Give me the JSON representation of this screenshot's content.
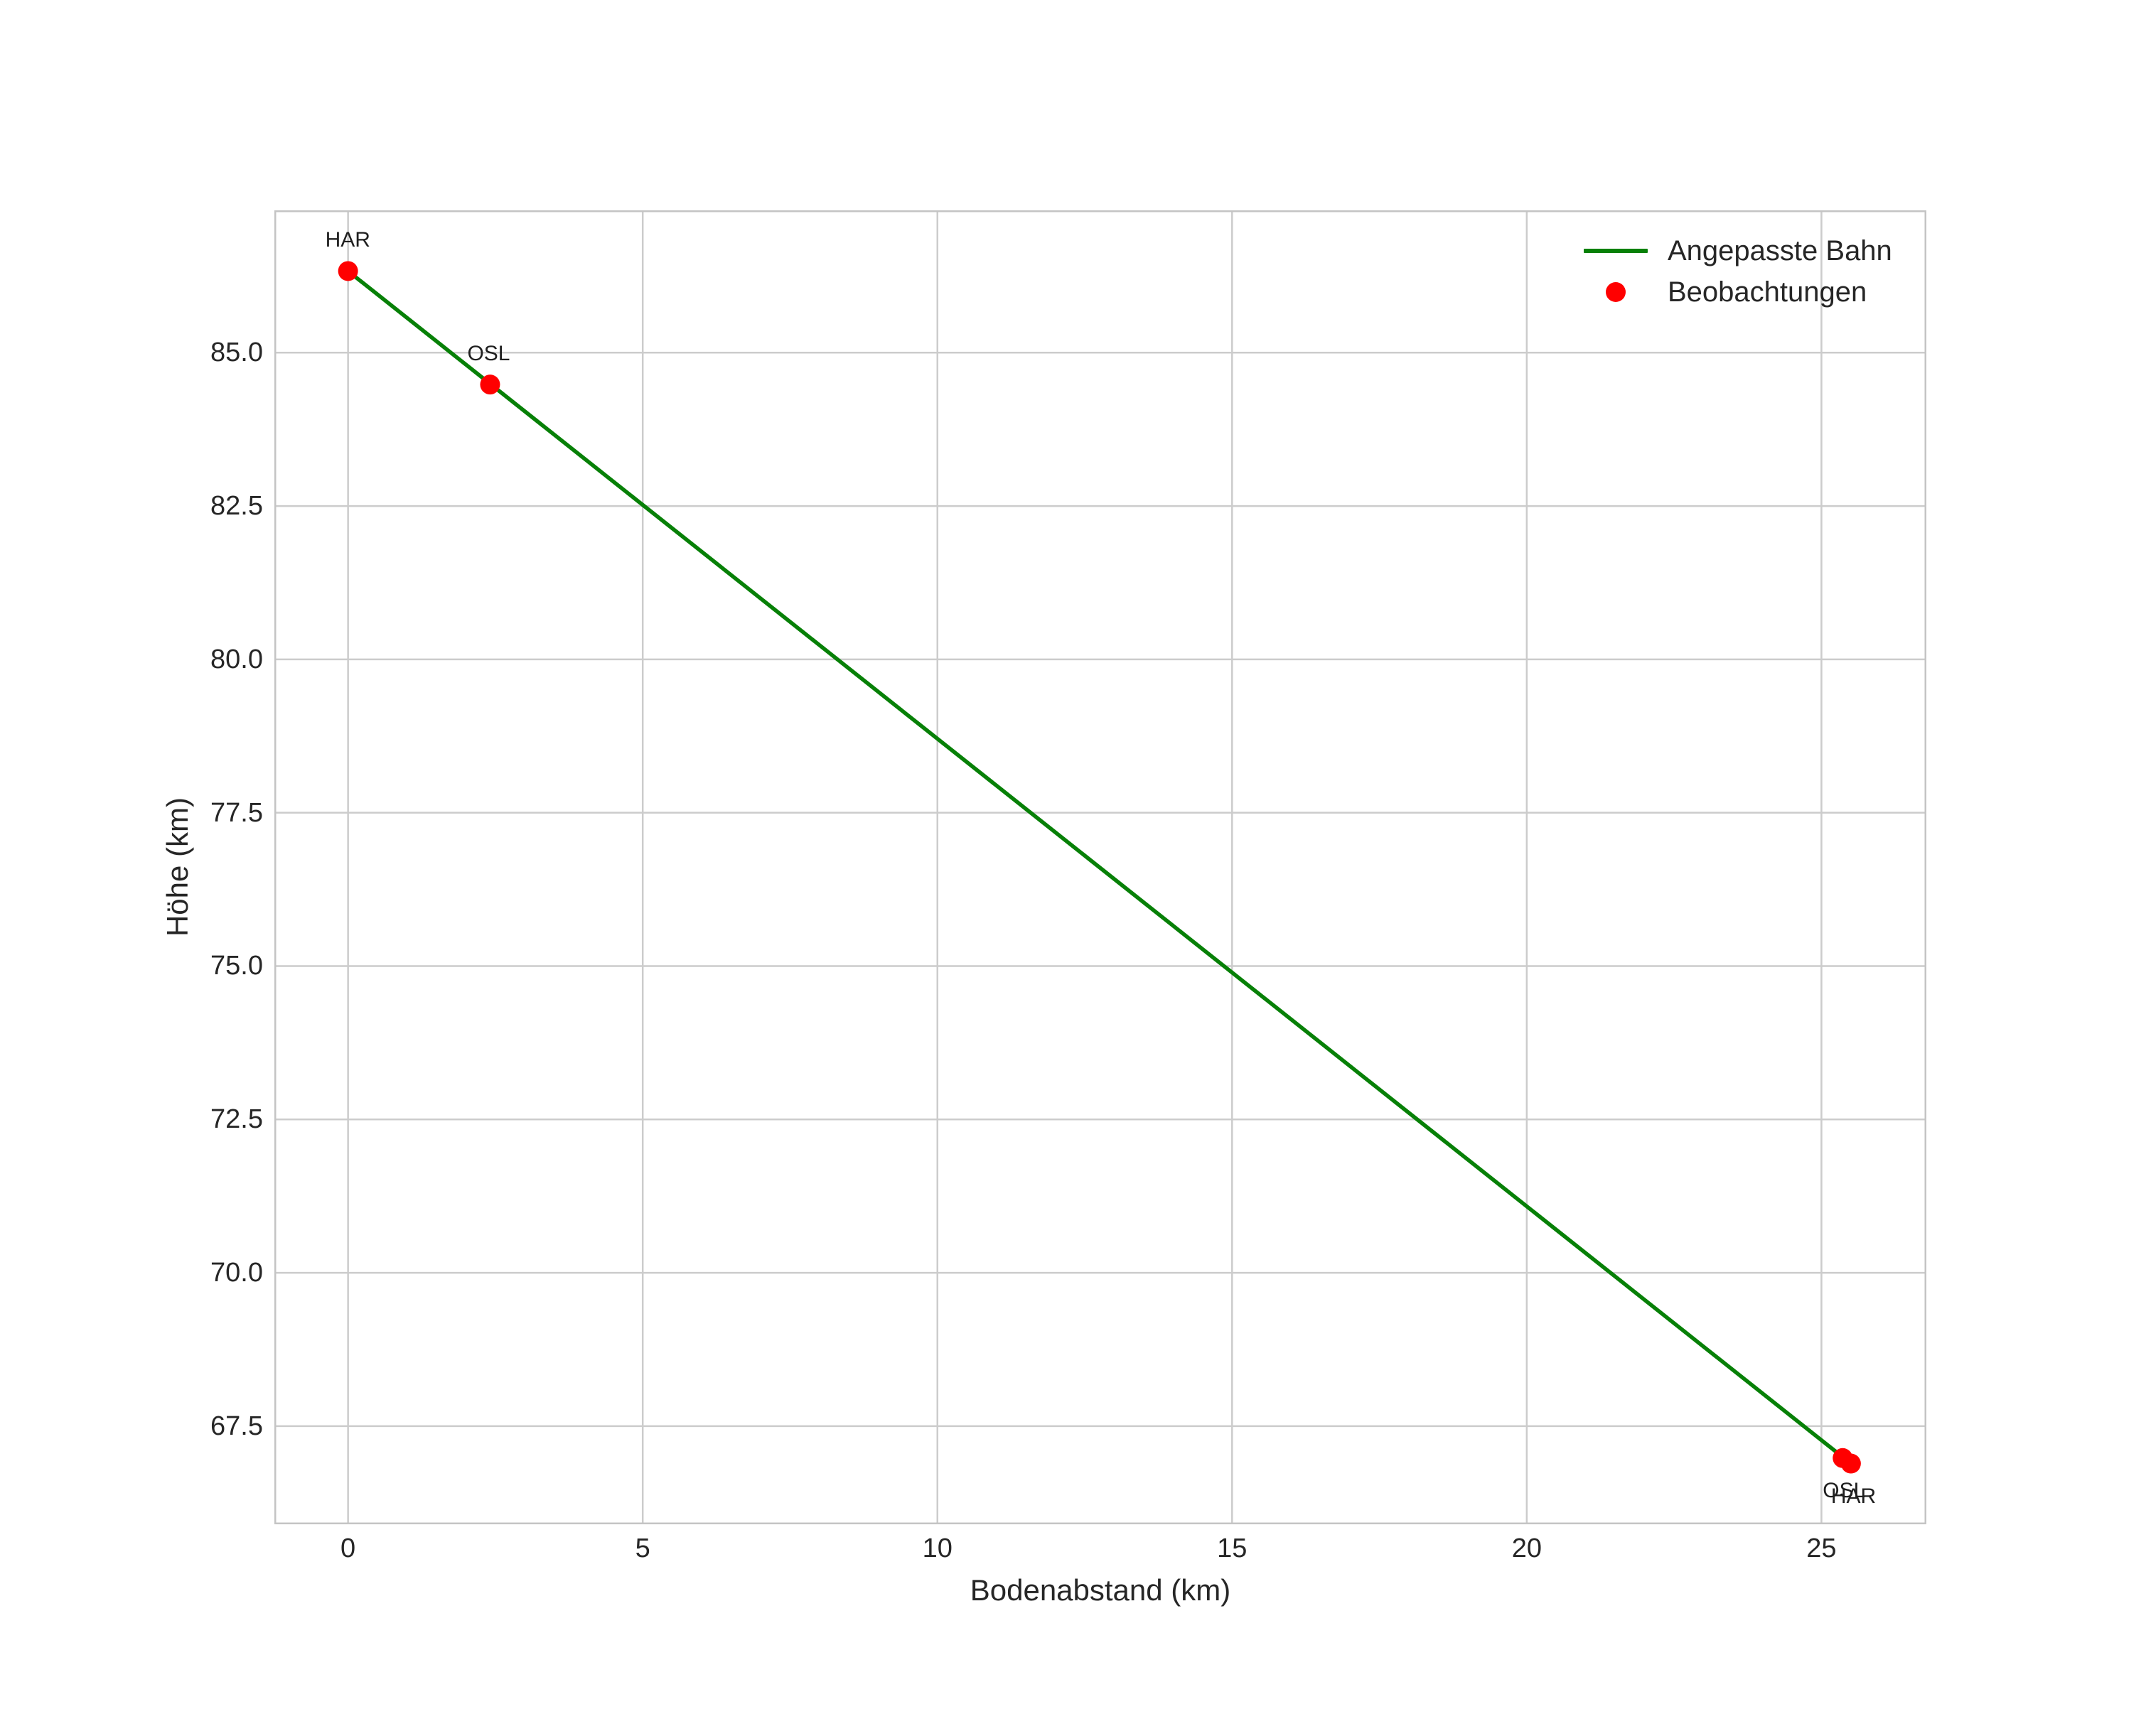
{
  "chart_data": {
    "type": "line",
    "title": "",
    "xlabel": "Bodenabstand (km)",
    "ylabel": "Höhe (km)",
    "xlim": [
      -1.25,
      26.78
    ],
    "ylim": [
      65.9,
      87.32
    ],
    "x_ticks": [
      0,
      5,
      10,
      15,
      20,
      25
    ],
    "x_tick_labels": [
      "0",
      "5",
      "10",
      "15",
      "20",
      "25"
    ],
    "y_ticks": [
      67.5,
      70.0,
      72.5,
      75.0,
      77.5,
      80.0,
      82.5,
      85.0
    ],
    "y_tick_labels": [
      "67.5",
      "70.0",
      "72.5",
      "75.0",
      "77.5",
      "80.0",
      "82.5",
      "85.0"
    ],
    "grid": true,
    "legend_position": "upper right",
    "series": [
      {
        "name": "Angepasste Bahn",
        "type": "line",
        "color": "#078007",
        "points": [
          [
            0.0,
            86.33
          ],
          [
            25.5,
            66.89
          ]
        ]
      },
      {
        "name": "Beobachtungen",
        "type": "scatter",
        "color": "#ff0000",
        "points": [
          [
            0.0,
            86.33
          ],
          [
            2.41,
            84.48
          ],
          [
            25.36,
            66.98
          ],
          [
            25.5,
            66.89
          ]
        ]
      }
    ],
    "annotations": [
      {
        "text": "HAR",
        "x": 0.0,
        "y": 86.33,
        "placement": "above"
      },
      {
        "text": "OSL",
        "x": 2.41,
        "y": 84.48,
        "placement": "above"
      },
      {
        "text": "OSL",
        "x": 25.36,
        "y": 66.98,
        "placement": "below"
      },
      {
        "text": "HAR",
        "x": 25.5,
        "y": 66.89,
        "placement": "below"
      }
    ],
    "legend": [
      {
        "label": "Angepasste Bahn",
        "marker": "line",
        "color": "#078007"
      },
      {
        "label": "Beobachtungen",
        "marker": "dot",
        "color": "#ff0000"
      }
    ]
  },
  "style": {
    "background": "#ffffff",
    "grid_color": "#cccccc",
    "spine_color": "#c4c4c4",
    "text_color": "#262626"
  }
}
